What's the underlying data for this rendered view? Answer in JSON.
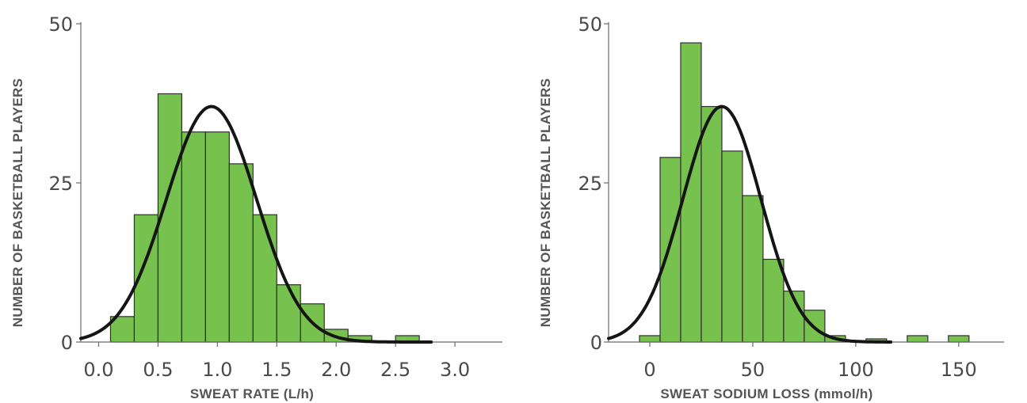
{
  "chart_data": [
    {
      "type": "bar",
      "xlabel": "SWEAT RATE (L/h)",
      "ylabel": "NUMBER OF BASKETBALL PLAYERS",
      "xlim": [
        -0.15,
        3.4
      ],
      "ylim": [
        0,
        50
      ],
      "xticks": [
        "0.0",
        "0.5",
        "1.0",
        "1.5",
        "2.0",
        "2.5",
        "3.0"
      ],
      "yticks": [
        "0",
        "25",
        "50"
      ],
      "bar_color": "#77c14f",
      "bins": [
        {
          "start": 0.1,
          "end": 0.3,
          "value": 4
        },
        {
          "start": 0.3,
          "end": 0.5,
          "value": 20
        },
        {
          "start": 0.5,
          "end": 0.7,
          "value": 39
        },
        {
          "start": 0.7,
          "end": 0.9,
          "value": 33
        },
        {
          "start": 0.9,
          "end": 1.1,
          "value": 33
        },
        {
          "start": 1.1,
          "end": 1.3,
          "value": 28
        },
        {
          "start": 1.3,
          "end": 1.5,
          "value": 20
        },
        {
          "start": 1.5,
          "end": 1.7,
          "value": 9
        },
        {
          "start": 1.7,
          "end": 1.9,
          "value": 6
        },
        {
          "start": 1.9,
          "end": 2.1,
          "value": 2
        },
        {
          "start": 2.1,
          "end": 2.3,
          "value": 1
        },
        {
          "start": 2.5,
          "end": 2.7,
          "value": 1
        }
      ],
      "fit_curve": {
        "type": "normal",
        "mean": 0.95,
        "sd": 0.38,
        "peak": 37,
        "x_range": [
          -0.15,
          2.8
        ]
      }
    },
    {
      "type": "bar",
      "xlabel": "SWEAT SODIUM LOSS (mmol/h)",
      "ylabel": "NUMBER OF BASKETBALL PLAYERS",
      "xlim": [
        -20,
        172
      ],
      "ylim": [
        0,
        50
      ],
      "xticks": [
        "0",
        "50",
        "100",
        "150"
      ],
      "yticks": [
        "0",
        "25",
        "50"
      ],
      "bar_color": "#77c14f",
      "bins": [
        {
          "start": -5,
          "end": 5,
          "value": 1
        },
        {
          "start": 5,
          "end": 15,
          "value": 29
        },
        {
          "start": 15,
          "end": 25,
          "value": 47
        },
        {
          "start": 25,
          "end": 35,
          "value": 37
        },
        {
          "start": 35,
          "end": 45,
          "value": 30
        },
        {
          "start": 45,
          "end": 55,
          "value": 23
        },
        {
          "start": 55,
          "end": 65,
          "value": 13
        },
        {
          "start": 65,
          "end": 75,
          "value": 8
        },
        {
          "start": 75,
          "end": 85,
          "value": 5
        },
        {
          "start": 85,
          "end": 95,
          "value": 1
        },
        {
          "start": 105,
          "end": 115,
          "value": 0.5
        },
        {
          "start": 125,
          "end": 135,
          "value": 1
        },
        {
          "start": 145,
          "end": 155,
          "value": 1
        }
      ],
      "fit_curve": {
        "type": "normal",
        "mean": 35,
        "sd": 19,
        "peak": 37,
        "x_range": [
          -20,
          117
        ]
      }
    }
  ]
}
